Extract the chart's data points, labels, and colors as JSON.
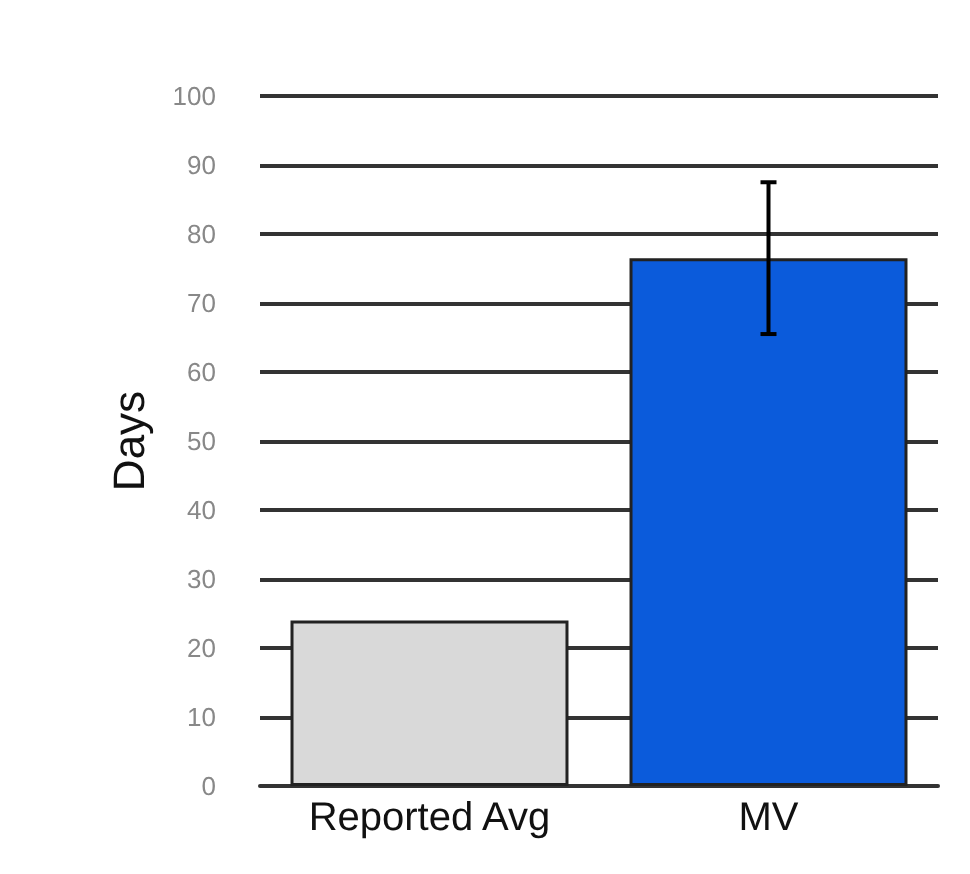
{
  "chart_data": {
    "type": "bar",
    "ylabel": "Days",
    "categories": [
      "Reported Avg",
      "MV"
    ],
    "values": [
      24,
      76.5
    ],
    "colors": [
      "#d9d9d9",
      "#0b5bdb"
    ],
    "errors": [
      null,
      [
        65.5,
        87.5
      ]
    ],
    "ylim": [
      0,
      100
    ],
    "yticks": [
      0,
      10,
      20,
      30,
      40,
      50,
      60,
      70,
      80,
      90,
      100
    ],
    "grid": "y"
  }
}
